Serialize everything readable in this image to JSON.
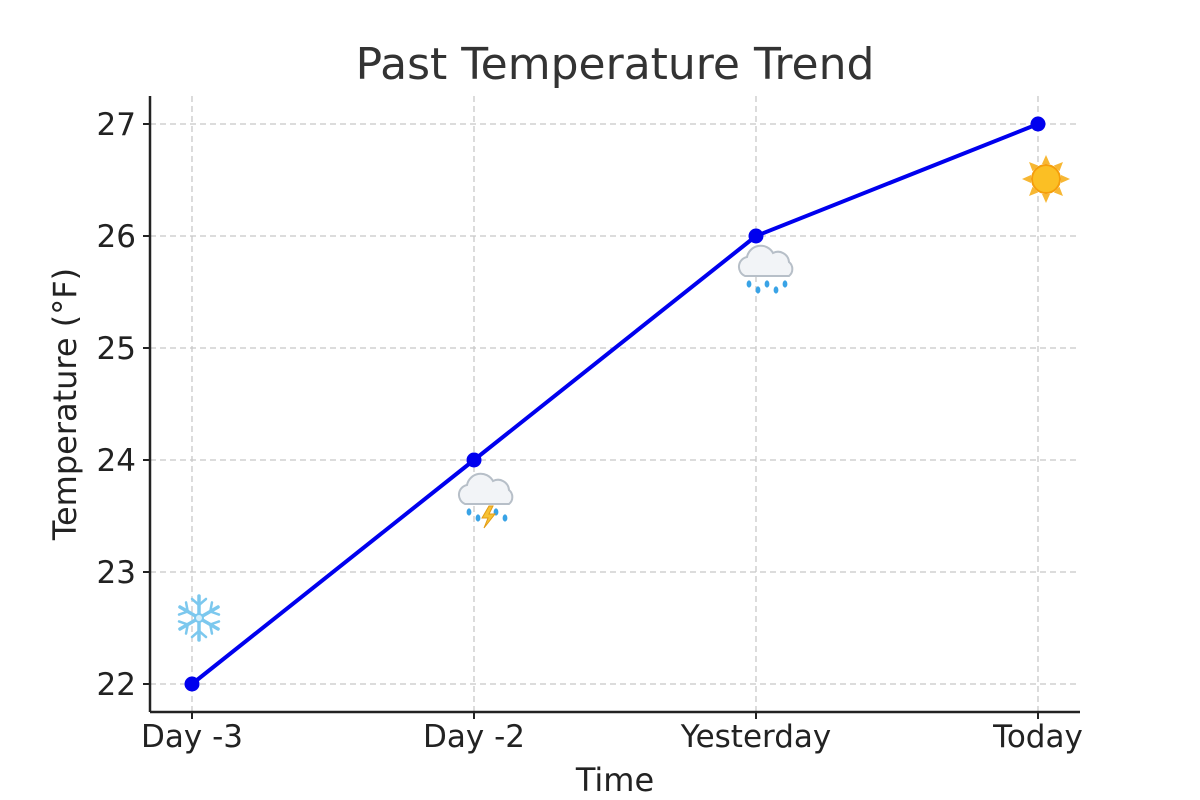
{
  "chart_data": {
    "type": "line",
    "title": "Past Temperature Trend",
    "xlabel": "Time",
    "ylabel": "Temperature (°F)",
    "categories": [
      "Day -3",
      "Day -2",
      "Yesterday",
      "Today"
    ],
    "series": [
      {
        "values": [
          22,
          24,
          26,
          27
        ],
        "color": "#0000ee"
      }
    ],
    "weather_icons": [
      "snowflake-icon",
      "thunderstorm-rain-icon",
      "rain-cloud-icon",
      "sun-icon"
    ],
    "yticks": [
      22,
      23,
      24,
      25,
      26,
      27
    ],
    "ylim": [
      21.75,
      27.25
    ],
    "grid": true,
    "legend": "none"
  }
}
